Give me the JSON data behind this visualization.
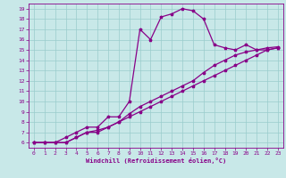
{
  "xlabel": "Windchill (Refroidissement éolien,°C)",
  "xlim": [
    -0.5,
    23.5
  ],
  "ylim": [
    5.5,
    19.5
  ],
  "xticks": [
    0,
    1,
    2,
    3,
    4,
    5,
    6,
    7,
    8,
    9,
    10,
    11,
    12,
    13,
    14,
    15,
    16,
    17,
    18,
    19,
    20,
    21,
    22,
    23
  ],
  "yticks": [
    6,
    7,
    8,
    9,
    10,
    11,
    12,
    13,
    14,
    15,
    16,
    17,
    18,
    19
  ],
  "background_color": "#c8e8e8",
  "line_color": "#880088",
  "grid_color": "#99cccc",
  "line1_x": [
    0,
    1,
    2,
    3,
    4,
    5,
    6,
    7,
    8,
    9,
    10,
    11,
    12,
    13,
    14,
    15,
    16,
    17,
    18,
    19,
    20,
    21,
    22,
    23
  ],
  "line1_y": [
    6,
    6,
    6,
    6.5,
    7,
    7.5,
    7.5,
    8.5,
    8.5,
    10,
    17,
    16,
    18.2,
    18.5,
    19,
    18.8,
    18,
    15.5,
    15.2,
    15,
    15.5,
    15,
    15,
    15.2
  ],
  "line2_x": [
    0,
    1,
    2,
    3,
    4,
    5,
    6,
    7,
    8,
    9,
    10,
    11,
    12,
    13,
    14,
    15,
    16,
    17,
    18,
    19,
    20,
    21,
    22,
    23
  ],
  "line2_y": [
    6,
    6,
    6,
    6,
    6.5,
    7,
    7,
    7.5,
    8,
    8.5,
    9,
    9.5,
    10,
    10.5,
    11,
    11.5,
    12,
    12.5,
    13,
    13.5,
    14,
    14.5,
    15,
    15.2
  ],
  "line3_x": [
    0,
    1,
    2,
    3,
    4,
    5,
    6,
    7,
    8,
    9,
    10,
    11,
    12,
    13,
    14,
    15,
    16,
    17,
    18,
    19,
    20,
    21,
    22,
    23
  ],
  "line3_y": [
    6,
    6,
    6,
    6,
    6.5,
    7,
    7.2,
    7.5,
    8,
    8.8,
    9.5,
    10,
    10.5,
    11,
    11.5,
    12,
    12.8,
    13.5,
    14,
    14.5,
    14.8,
    15,
    15.2,
    15.3
  ]
}
